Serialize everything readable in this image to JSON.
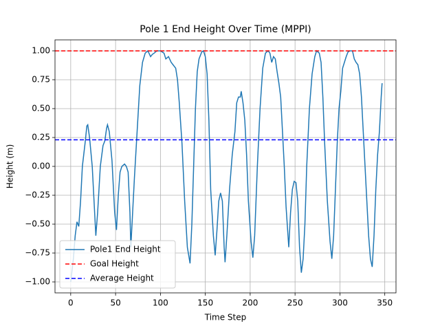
{
  "chart_data": {
    "type": "line",
    "title": "Pole 1 End Height Over Time (MPPI)",
    "x_label": "Time Step",
    "y_label": "Height (m)",
    "x": [
      0,
      3,
      5,
      7,
      9,
      11,
      13,
      16,
      18,
      19,
      21,
      24,
      27,
      28,
      30,
      33,
      36,
      38,
      40,
      41,
      43,
      46,
      49,
      51,
      53,
      55,
      57,
      60,
      62,
      64,
      66,
      67,
      69,
      71,
      74,
      77,
      80,
      83,
      86,
      89,
      91,
      93,
      96,
      100,
      104,
      106,
      109,
      112,
      114,
      117,
      119,
      121,
      124,
      127,
      130,
      133,
      135,
      137,
      139,
      141,
      143,
      146,
      148,
      150,
      152,
      154,
      156,
      159,
      161,
      163,
      165,
      167,
      169,
      171,
      172,
      174,
      177,
      180,
      183,
      185,
      187,
      189,
      190,
      192,
      194,
      196,
      198,
      201,
      203,
      205,
      208,
      211,
      214,
      217,
      220,
      222,
      224,
      226,
      228,
      230,
      232,
      234,
      236,
      238,
      240,
      243,
      245,
      247,
      249,
      251,
      253,
      255,
      257,
      259,
      261,
      263,
      266,
      269,
      272,
      274,
      277,
      279,
      281,
      283,
      286,
      289,
      291,
      293,
      295,
      297,
      299,
      301,
      303,
      305,
      307,
      309,
      311,
      314,
      316,
      318,
      320,
      322,
      324,
      326,
      328,
      330,
      332,
      334,
      336,
      338,
      340,
      342,
      344,
      346,
      347
    ],
    "series": [
      {
        "name": "Pole1 End Height",
        "color": "#1f77b4",
        "values": [
          -1.0,
          -0.8,
          -0.6,
          -0.48,
          -0.52,
          -0.3,
          0.0,
          0.2,
          0.35,
          0.36,
          0.25,
          0.0,
          -0.45,
          -0.6,
          -0.4,
          0.0,
          0.18,
          0.22,
          0.33,
          0.36,
          0.3,
          0.05,
          -0.4,
          -0.55,
          -0.25,
          -0.05,
          0.0,
          0.02,
          0.0,
          -0.05,
          -0.4,
          -0.7,
          -0.4,
          -0.1,
          0.3,
          0.7,
          0.9,
          0.98,
          1.0,
          0.95,
          0.97,
          0.98,
          1.0,
          1.0,
          0.98,
          0.93,
          0.95,
          0.9,
          0.88,
          0.85,
          0.75,
          0.55,
          0.2,
          -0.3,
          -0.7,
          -0.84,
          -0.5,
          0.0,
          0.5,
          0.82,
          0.93,
          0.99,
          1.0,
          0.95,
          0.8,
          0.4,
          -0.2,
          -0.6,
          -0.77,
          -0.55,
          -0.3,
          -0.23,
          -0.3,
          -0.7,
          -0.83,
          -0.6,
          -0.2,
          0.1,
          0.3,
          0.55,
          0.6,
          0.6,
          0.65,
          0.55,
          0.4,
          0.1,
          -0.3,
          -0.65,
          -0.79,
          -0.6,
          0.0,
          0.5,
          0.85,
          0.98,
          1.0,
          0.98,
          0.9,
          0.95,
          0.93,
          0.82,
          0.72,
          0.6,
          0.3,
          0.0,
          -0.35,
          -0.7,
          -0.4,
          -0.2,
          -0.13,
          -0.14,
          -0.3,
          -0.7,
          -0.92,
          -0.8,
          -0.5,
          0.0,
          0.5,
          0.8,
          0.95,
          1.0,
          0.98,
          0.9,
          0.6,
          0.2,
          -0.3,
          -0.65,
          -0.8,
          -0.6,
          -0.2,
          0.2,
          0.5,
          0.65,
          0.85,
          0.9,
          0.95,
          0.99,
          1.0,
          1.0,
          0.93,
          0.9,
          0.88,
          0.8,
          0.6,
          0.3,
          0.0,
          -0.3,
          -0.6,
          -0.8,
          -0.87,
          -0.6,
          -0.2,
          0.1,
          0.3,
          0.6,
          0.72
        ]
      }
    ],
    "hlines": [
      {
        "name": "Goal Height",
        "color": "#ff0000",
        "value": 1.0
      },
      {
        "name": "Average Height",
        "color": "#0000ff",
        "value": 0.23
      }
    ],
    "xlim": [
      -17.5,
      362.5
    ],
    "ylim": [
      -1.095,
      1.095
    ],
    "xticks": [
      0,
      50,
      100,
      150,
      200,
      250,
      300,
      350
    ],
    "yticks": [
      {
        "value": -1,
        "label": "−1.00"
      },
      {
        "value": -0.75,
        "label": "−0.75"
      },
      {
        "value": -0.5,
        "label": "−0.50"
      },
      {
        "value": -0.25,
        "label": "−0.25"
      },
      {
        "value": 0,
        "label": "0.00"
      },
      {
        "value": 0.25,
        "label": "0.25"
      },
      {
        "value": 0.5,
        "label": "0.50"
      },
      {
        "value": 0.75,
        "label": "0.75"
      },
      {
        "value": 1,
        "label": "1.00"
      }
    ],
    "grid": true,
    "legend": "lower left"
  }
}
